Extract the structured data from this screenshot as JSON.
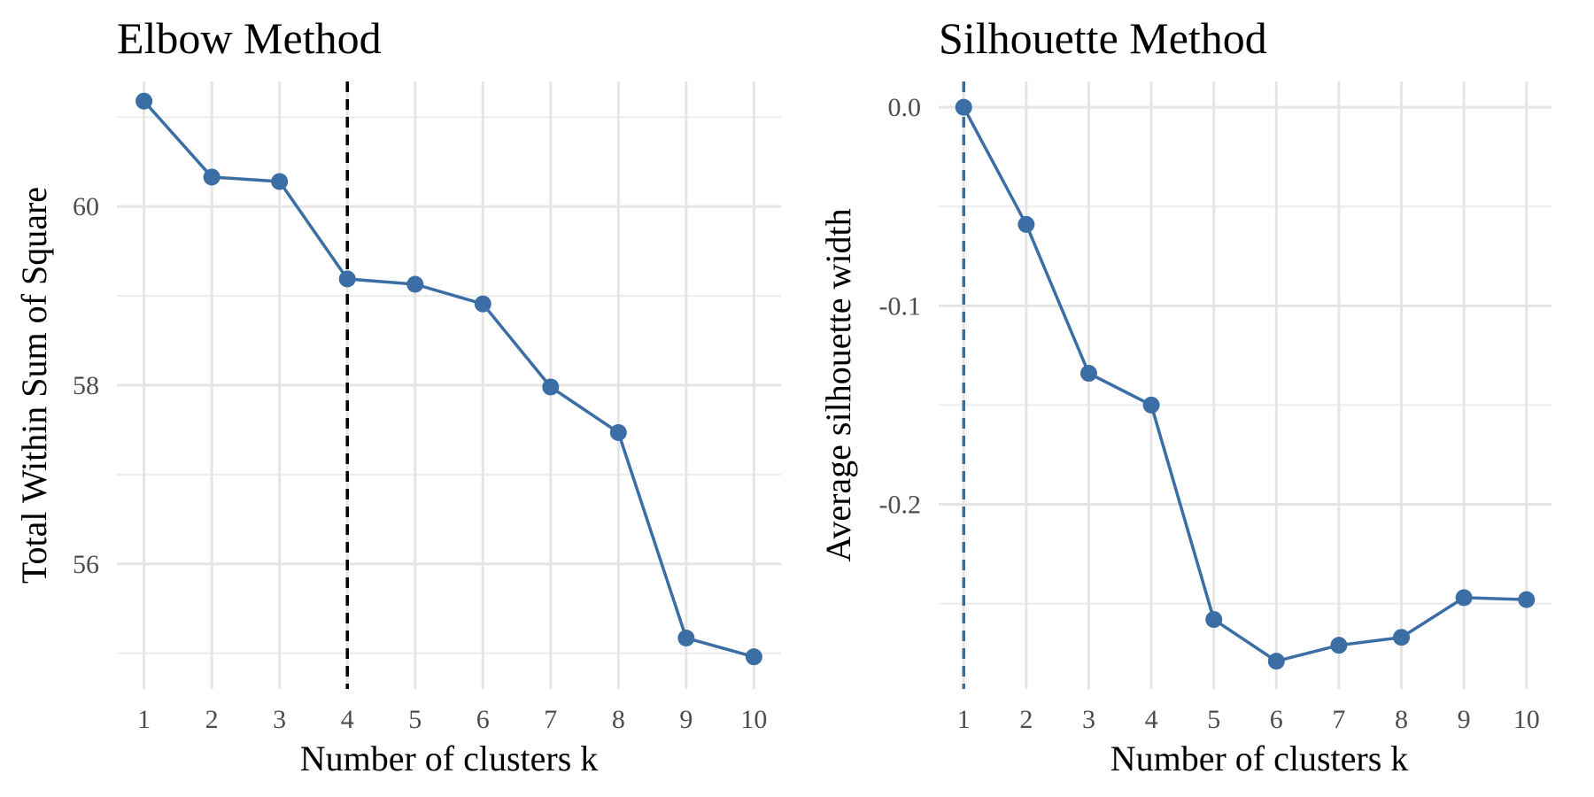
{
  "chart_data": [
    {
      "type": "line",
      "title": "Elbow Method",
      "xlabel": "Number of clusters k",
      "ylabel": "Total Within Sum of Square",
      "x": [
        1,
        2,
        3,
        4,
        5,
        6,
        7,
        8,
        9,
        10
      ],
      "y": [
        61.18,
        60.33,
        60.28,
        59.19,
        59.13,
        58.91,
        57.98,
        57.47,
        55.17,
        54.96
      ],
      "xlim": [
        0.6,
        10.4
      ],
      "ylim": [
        54.6,
        61.4
      ],
      "yticks": [
        56,
        58,
        60
      ],
      "ytick_labels": [
        "56",
        "58",
        "60"
      ],
      "xtick_labels": [
        "1",
        "2",
        "3",
        "4",
        "5",
        "6",
        "7",
        "8",
        "9",
        "10"
      ],
      "vline": 4,
      "line_color": "#3a6ea5",
      "vline_color": "#000000",
      "grid": true
    },
    {
      "type": "line",
      "title": "Silhouette Method",
      "xlabel": "Number of clusters k",
      "ylabel": "Average silhouette width",
      "x": [
        1,
        2,
        3,
        4,
        5,
        6,
        7,
        8,
        9,
        10
      ],
      "y": [
        0.0,
        -0.059,
        -0.134,
        -0.15,
        -0.258,
        -0.279,
        -0.271,
        -0.267,
        -0.247,
        -0.248
      ],
      "xlim": [
        0.6,
        10.4
      ],
      "ylim": [
        -0.293,
        0.013
      ],
      "yticks": [
        0.0,
        -0.1,
        -0.2
      ],
      "ytick_labels": [
        "0.0",
        "-0.1",
        "-0.2"
      ],
      "xtick_labels": [
        "1",
        "2",
        "3",
        "4",
        "5",
        "6",
        "7",
        "8",
        "9",
        "10"
      ],
      "vline": 1,
      "line_color": "#3a6ea5",
      "vline_color": "#3a6ea5",
      "grid": true
    }
  ]
}
